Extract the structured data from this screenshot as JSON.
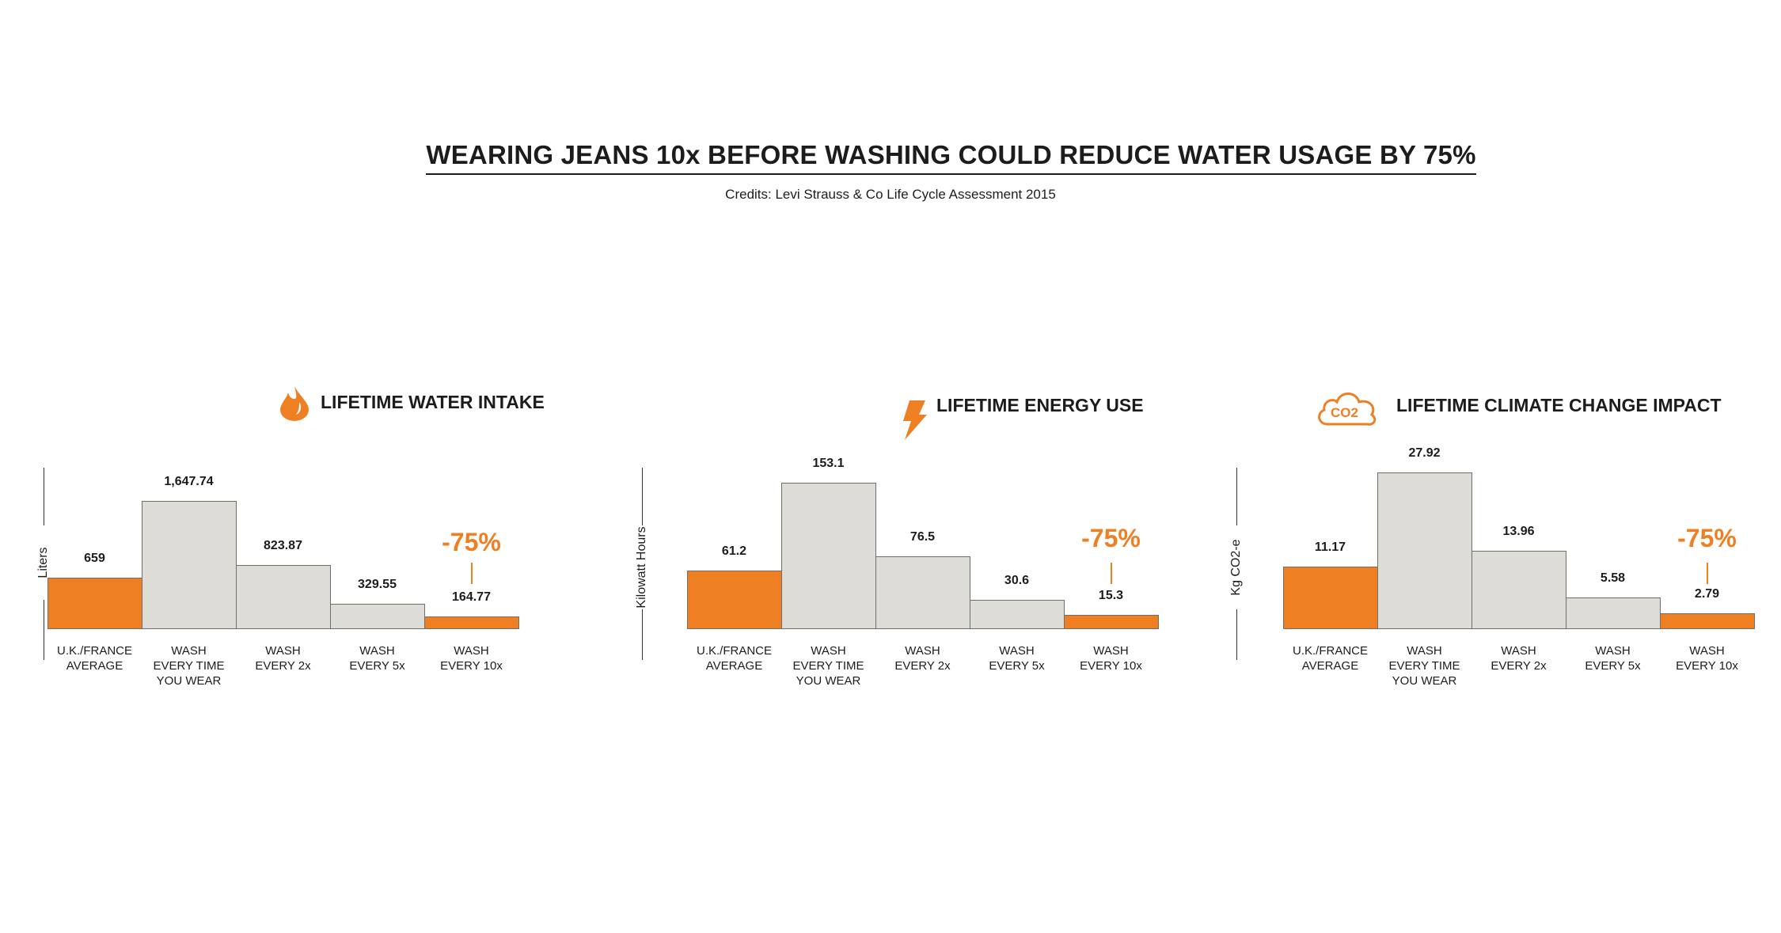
{
  "title": "WEARING JEANS 10x BEFORE WASHING  COULD  REDUCE WATER USAGE BY 75%",
  "credits": "Credits: Levi Strauss & Co Life Cycle Assessment 2015",
  "colors": {
    "highlight": "#EE7F22",
    "bar": "#DEDCD6",
    "text": "#1c1c1c"
  },
  "chart_data": [
    {
      "type": "bar",
      "title": "LIFETIME WATER INTAKE",
      "icon": "water-drop-icon",
      "ylabel": "Liters",
      "categories": [
        [
          "U.K./FRANCE",
          "AVERAGE"
        ],
        [
          "WASH",
          "EVERY TIME",
          "YOU WEAR"
        ],
        [
          "WASH",
          "EVERY 2x"
        ],
        [
          "WASH",
          "EVERY 5x"
        ],
        [
          "WASH",
          "EVERY 10x"
        ]
      ],
      "values": [
        659,
        1647.74,
        823.87,
        329.55,
        164.77
      ],
      "value_labels": [
        "659",
        "1,647.74",
        "823.87",
        "329.55",
        "164.77"
      ],
      "highlighted": [
        true,
        false,
        false,
        false,
        true
      ],
      "annotation": "-75%",
      "ylim": [
        0,
        1647.74
      ]
    },
    {
      "type": "bar",
      "title": "LIFETIME ENERGY USE",
      "icon": "lightning-icon",
      "ylabel": "Kilowatt Hours",
      "categories": [
        [
          "U.K./FRANCE",
          "AVERAGE"
        ],
        [
          "WASH",
          "EVERY TIME",
          "YOU WEAR"
        ],
        [
          "WASH",
          "EVERY 2x"
        ],
        [
          "WASH",
          "EVERY 5x"
        ],
        [
          "WASH",
          "EVERY 10x"
        ]
      ],
      "values": [
        61.2,
        153.1,
        76.5,
        30.6,
        15.3
      ],
      "value_labels": [
        "61.2",
        "153.1",
        "76.5",
        "30.6",
        "15.3"
      ],
      "highlighted": [
        true,
        false,
        false,
        false,
        true
      ],
      "annotation": "-75%",
      "ylim": [
        0,
        153.1
      ]
    },
    {
      "type": "bar",
      "title": "LIFETIME CLIMATE CHANGE IMPACT",
      "icon": "co2-cloud-icon",
      "icon_text": "CO2",
      "ylabel": "Kg CO2-e",
      "categories": [
        [
          "U.K./FRANCE",
          "AVERAGE"
        ],
        [
          "WASH",
          "EVERY TIME",
          "YOU WEAR"
        ],
        [
          "WASH",
          "EVERY 2x"
        ],
        [
          "WASH",
          "EVERY 5x"
        ],
        [
          "WASH",
          "EVERY 10x"
        ]
      ],
      "values": [
        11.17,
        27.92,
        13.96,
        5.58,
        2.79
      ],
      "value_labels": [
        "11.17",
        "27.92",
        "13.96",
        "5.58",
        "2.79"
      ],
      "highlighted": [
        true,
        false,
        false,
        false,
        true
      ],
      "annotation": "-75%",
      "ylim": [
        0,
        27.92
      ]
    }
  ]
}
